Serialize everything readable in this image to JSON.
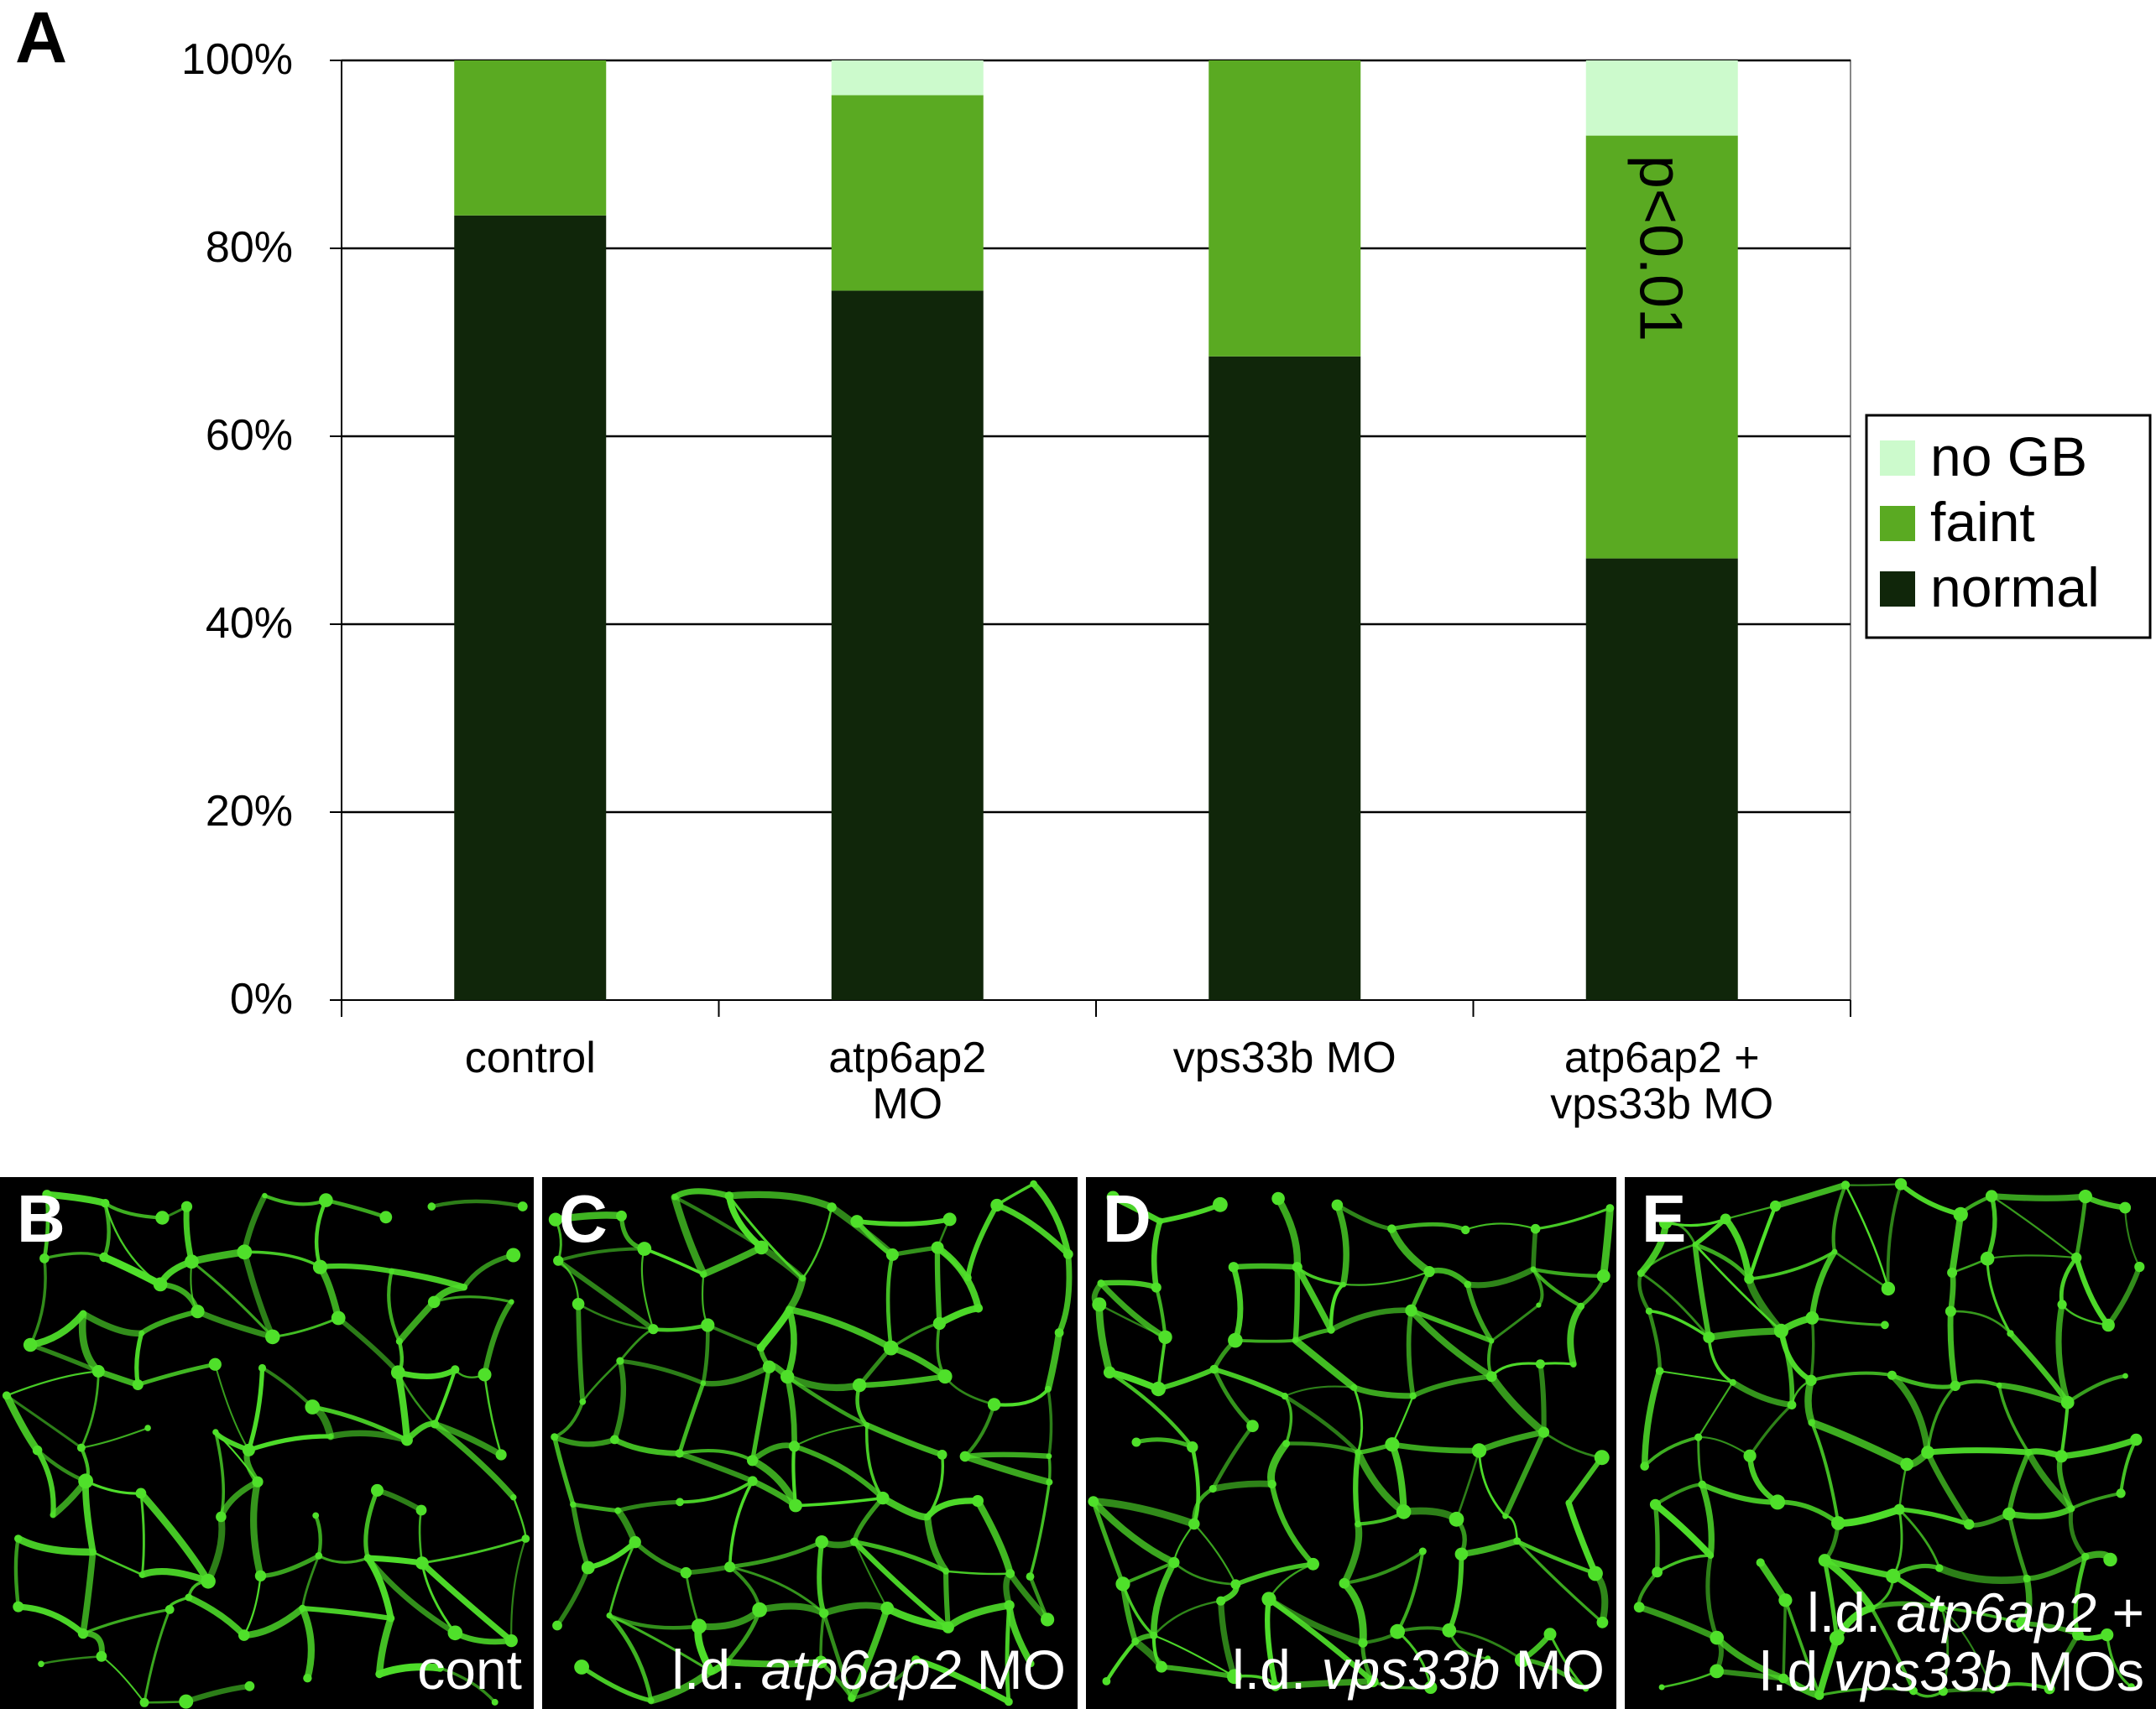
{
  "figure": {
    "panel_a_letter": "A"
  },
  "chart_data": {
    "type": "bar",
    "stacked": true,
    "categories": [
      [
        "control"
      ],
      [
        "atp6ap2",
        "MO"
      ],
      [
        "vps33b MO"
      ],
      [
        "atp6ap2 +",
        "vps33b MO"
      ]
    ],
    "series": [
      {
        "name": "normal",
        "color": "#10260a",
        "values": [
          83.5,
          75.5,
          68.5,
          47
        ]
      },
      {
        "name": "faint",
        "color": "#5aaa22",
        "values": [
          16.5,
          20.8,
          31.5,
          45
        ]
      },
      {
        "name": "no GB",
        "color": "#ccfacc",
        "values": [
          0,
          3.7,
          0,
          8
        ]
      }
    ],
    "ylim": [
      0,
      100
    ],
    "yticks": [
      "0%",
      "20%",
      "40%",
      "60%",
      "80%",
      "100%"
    ],
    "ytick_values": [
      0,
      20,
      40,
      60,
      80,
      100
    ],
    "grid": true,
    "legend_position": "right",
    "legend_order": [
      "no GB",
      "faint",
      "normal"
    ],
    "annotation": {
      "text": "p<0.01",
      "category_index": 3,
      "rotation": "vertical"
    }
  },
  "panels": [
    {
      "letter": "B",
      "caption": [
        [
          {
            "t": "cont",
            "i": false
          }
        ]
      ]
    },
    {
      "letter": "C",
      "caption": [
        [
          {
            "t": "l.d. ",
            "i": false
          },
          {
            "t": "atp6ap2",
            "i": true
          },
          {
            "t": " MO",
            "i": false
          }
        ]
      ]
    },
    {
      "letter": "D",
      "caption": [
        [
          {
            "t": "l.d. ",
            "i": false
          },
          {
            "t": "vps33b",
            "i": true
          },
          {
            "t": " MO",
            "i": false
          }
        ]
      ]
    },
    {
      "letter": "E",
      "caption": [
        [
          {
            "t": "l.d. ",
            "i": false
          },
          {
            "t": "atp6ap2",
            "i": true
          },
          {
            "t": " +",
            "i": false
          }
        ],
        [
          {
            "t": "l.d ",
            "i": false
          },
          {
            "t": "vps33b",
            "i": true
          },
          {
            "t": " MOs",
            "i": false
          }
        ]
      ]
    }
  ],
  "colors": {
    "panel_background": "#000000",
    "vessel_green": "#4fe02a"
  }
}
